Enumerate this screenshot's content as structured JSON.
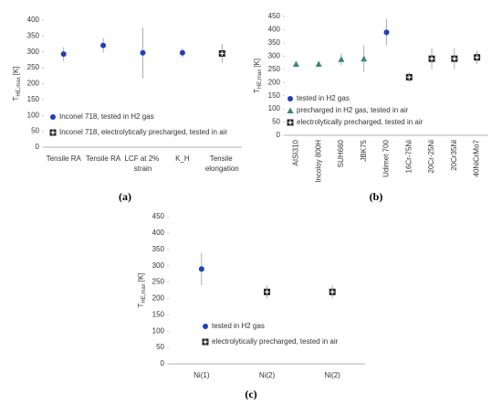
{
  "chart_data": [
    {
      "type": "scatter",
      "panel_label": "(a)",
      "y_label": "T",
      "y_label_sub": "HE,max",
      "y_label_unit": "[K]",
      "categories": [
        "Tensile RA",
        "Tensile RA",
        "LCF at 2% strain",
        "K_H",
        "Tensile elongation"
      ],
      "ylim": [
        0,
        400
      ],
      "yticks": [
        0,
        50,
        100,
        150,
        200,
        250,
        300,
        350,
        400
      ],
      "legend": "lower left",
      "series": [
        {
          "name": "Inconel 718, tested in H2 gas",
          "color": "#1f3fbf",
          "marker": "circle",
          "values": [
            293,
            320,
            297,
            297,
            null
          ],
          "errors": [
            22,
            23,
            80,
            15,
            null
          ]
        },
        {
          "name": "Inconel 718, electrolytically precharged, tested in air",
          "color": "#222222",
          "marker": "square",
          "values": [
            null,
            null,
            null,
            null,
            295
          ],
          "errors": [
            null,
            null,
            null,
            null,
            30
          ]
        }
      ]
    },
    {
      "type": "scatter",
      "panel_label": "(b)",
      "y_label": "T",
      "y_label_sub": "HE,max",
      "y_label_unit": "[K]",
      "categories": [
        "AISI310",
        "Incoloy 800H",
        "SUH660",
        "JBK75",
        "Udimet 700",
        "16Cr-75Ni",
        "20Cr-25Ni",
        "20Cr35Ni",
        "40NiCrMo7"
      ],
      "ylim": [
        0,
        450
      ],
      "yticks": [
        0,
        50,
        100,
        150,
        200,
        250,
        300,
        350,
        400,
        450
      ],
      "legend": "lower left",
      "series": [
        {
          "name": "tested in H2 gas",
          "color": "#1f3fbf",
          "marker": "circle",
          "values": [
            null,
            null,
            null,
            null,
            390,
            null,
            null,
            null,
            null
          ],
          "errors": [
            null,
            null,
            null,
            null,
            50,
            null,
            null,
            null,
            null
          ]
        },
        {
          "name": "precharged in H2 gas, tested in air",
          "color": "#3a8a6a",
          "marker": "triangle",
          "values": [
            270,
            270,
            288,
            290,
            null,
            null,
            null,
            null,
            null
          ],
          "errors": [
            null,
            null,
            22,
            50,
            null,
            null,
            null,
            null,
            null
          ]
        },
        {
          "name": "electrolytically precharged, tested in air",
          "color": "#222222",
          "marker": "square",
          "values": [
            null,
            null,
            null,
            null,
            null,
            220,
            290,
            290,
            295
          ],
          "errors": [
            null,
            null,
            null,
            null,
            null,
            20,
            40,
            40,
            25
          ]
        }
      ]
    },
    {
      "type": "scatter",
      "panel_label": "(c)",
      "y_label": "T",
      "y_label_sub": "HE,max",
      "y_label_unit": "[K]",
      "categories": [
        "Ni(1)",
        "Ni(2)",
        "Ni(2)"
      ],
      "ylim": [
        0,
        450
      ],
      "yticks": [
        0,
        50,
        100,
        150,
        200,
        250,
        300,
        350,
        400,
        450
      ],
      "legend": "lower left",
      "series": [
        {
          "name": "tested in H2 gas",
          "color": "#1f3fbf",
          "marker": "circle",
          "values": [
            290,
            null,
            null
          ],
          "errors": [
            50,
            null,
            null
          ]
        },
        {
          "name": "electrolytically precharged, tested in air",
          "color": "#222222",
          "marker": "square",
          "values": [
            null,
            220,
            220
          ],
          "errors": [
            null,
            20,
            20
          ]
        }
      ]
    }
  ]
}
